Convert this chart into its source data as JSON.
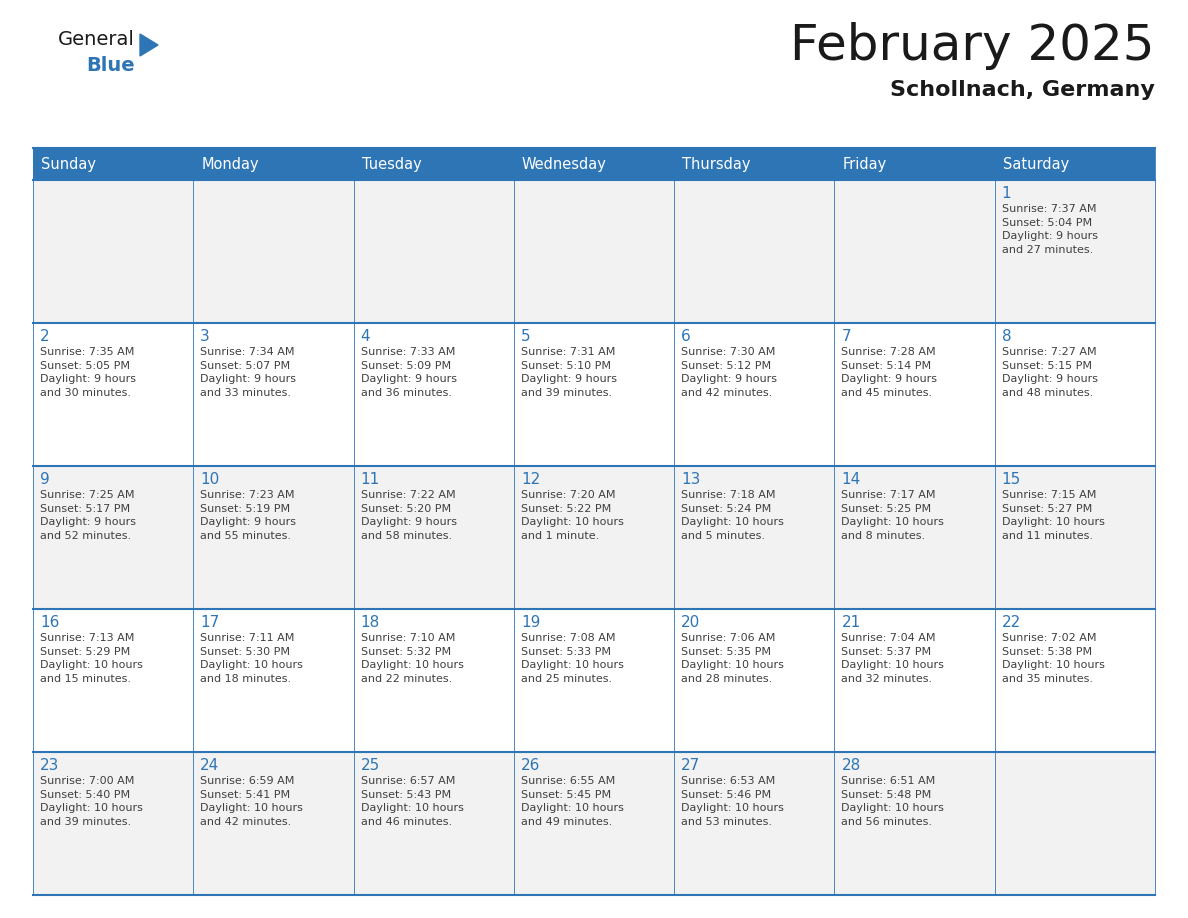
{
  "title": "February 2025",
  "subtitle": "Schollnach, Germany",
  "header_bg": "#2E75B6",
  "header_text_color": "#FFFFFF",
  "cell_bg_odd": "#F2F2F2",
  "cell_bg_even": "#FFFFFF",
  "day_number_color": "#2E75B6",
  "cell_text_color": "#404040",
  "grid_line_color": "#2E75B6",
  "days_of_week": [
    "Sunday",
    "Monday",
    "Tuesday",
    "Wednesday",
    "Thursday",
    "Friday",
    "Saturday"
  ],
  "weeks": [
    [
      {
        "day": null,
        "info": null
      },
      {
        "day": null,
        "info": null
      },
      {
        "day": null,
        "info": null
      },
      {
        "day": null,
        "info": null
      },
      {
        "day": null,
        "info": null
      },
      {
        "day": null,
        "info": null
      },
      {
        "day": "1",
        "info": "Sunrise: 7:37 AM\nSunset: 5:04 PM\nDaylight: 9 hours\nand 27 minutes."
      }
    ],
    [
      {
        "day": "2",
        "info": "Sunrise: 7:35 AM\nSunset: 5:05 PM\nDaylight: 9 hours\nand 30 minutes."
      },
      {
        "day": "3",
        "info": "Sunrise: 7:34 AM\nSunset: 5:07 PM\nDaylight: 9 hours\nand 33 minutes."
      },
      {
        "day": "4",
        "info": "Sunrise: 7:33 AM\nSunset: 5:09 PM\nDaylight: 9 hours\nand 36 minutes."
      },
      {
        "day": "5",
        "info": "Sunrise: 7:31 AM\nSunset: 5:10 PM\nDaylight: 9 hours\nand 39 minutes."
      },
      {
        "day": "6",
        "info": "Sunrise: 7:30 AM\nSunset: 5:12 PM\nDaylight: 9 hours\nand 42 minutes."
      },
      {
        "day": "7",
        "info": "Sunrise: 7:28 AM\nSunset: 5:14 PM\nDaylight: 9 hours\nand 45 minutes."
      },
      {
        "day": "8",
        "info": "Sunrise: 7:27 AM\nSunset: 5:15 PM\nDaylight: 9 hours\nand 48 minutes."
      }
    ],
    [
      {
        "day": "9",
        "info": "Sunrise: 7:25 AM\nSunset: 5:17 PM\nDaylight: 9 hours\nand 52 minutes."
      },
      {
        "day": "10",
        "info": "Sunrise: 7:23 AM\nSunset: 5:19 PM\nDaylight: 9 hours\nand 55 minutes."
      },
      {
        "day": "11",
        "info": "Sunrise: 7:22 AM\nSunset: 5:20 PM\nDaylight: 9 hours\nand 58 minutes."
      },
      {
        "day": "12",
        "info": "Sunrise: 7:20 AM\nSunset: 5:22 PM\nDaylight: 10 hours\nand 1 minute."
      },
      {
        "day": "13",
        "info": "Sunrise: 7:18 AM\nSunset: 5:24 PM\nDaylight: 10 hours\nand 5 minutes."
      },
      {
        "day": "14",
        "info": "Sunrise: 7:17 AM\nSunset: 5:25 PM\nDaylight: 10 hours\nand 8 minutes."
      },
      {
        "day": "15",
        "info": "Sunrise: 7:15 AM\nSunset: 5:27 PM\nDaylight: 10 hours\nand 11 minutes."
      }
    ],
    [
      {
        "day": "16",
        "info": "Sunrise: 7:13 AM\nSunset: 5:29 PM\nDaylight: 10 hours\nand 15 minutes."
      },
      {
        "day": "17",
        "info": "Sunrise: 7:11 AM\nSunset: 5:30 PM\nDaylight: 10 hours\nand 18 minutes."
      },
      {
        "day": "18",
        "info": "Sunrise: 7:10 AM\nSunset: 5:32 PM\nDaylight: 10 hours\nand 22 minutes."
      },
      {
        "day": "19",
        "info": "Sunrise: 7:08 AM\nSunset: 5:33 PM\nDaylight: 10 hours\nand 25 minutes."
      },
      {
        "day": "20",
        "info": "Sunrise: 7:06 AM\nSunset: 5:35 PM\nDaylight: 10 hours\nand 28 minutes."
      },
      {
        "day": "21",
        "info": "Sunrise: 7:04 AM\nSunset: 5:37 PM\nDaylight: 10 hours\nand 32 minutes."
      },
      {
        "day": "22",
        "info": "Sunrise: 7:02 AM\nSunset: 5:38 PM\nDaylight: 10 hours\nand 35 minutes."
      }
    ],
    [
      {
        "day": "23",
        "info": "Sunrise: 7:00 AM\nSunset: 5:40 PM\nDaylight: 10 hours\nand 39 minutes."
      },
      {
        "day": "24",
        "info": "Sunrise: 6:59 AM\nSunset: 5:41 PM\nDaylight: 10 hours\nand 42 minutes."
      },
      {
        "day": "25",
        "info": "Sunrise: 6:57 AM\nSunset: 5:43 PM\nDaylight: 10 hours\nand 46 minutes."
      },
      {
        "day": "26",
        "info": "Sunrise: 6:55 AM\nSunset: 5:45 PM\nDaylight: 10 hours\nand 49 minutes."
      },
      {
        "day": "27",
        "info": "Sunrise: 6:53 AM\nSunset: 5:46 PM\nDaylight: 10 hours\nand 53 minutes."
      },
      {
        "day": "28",
        "info": "Sunrise: 6:51 AM\nSunset: 5:48 PM\nDaylight: 10 hours\nand 56 minutes."
      },
      {
        "day": null,
        "info": null
      }
    ]
  ]
}
